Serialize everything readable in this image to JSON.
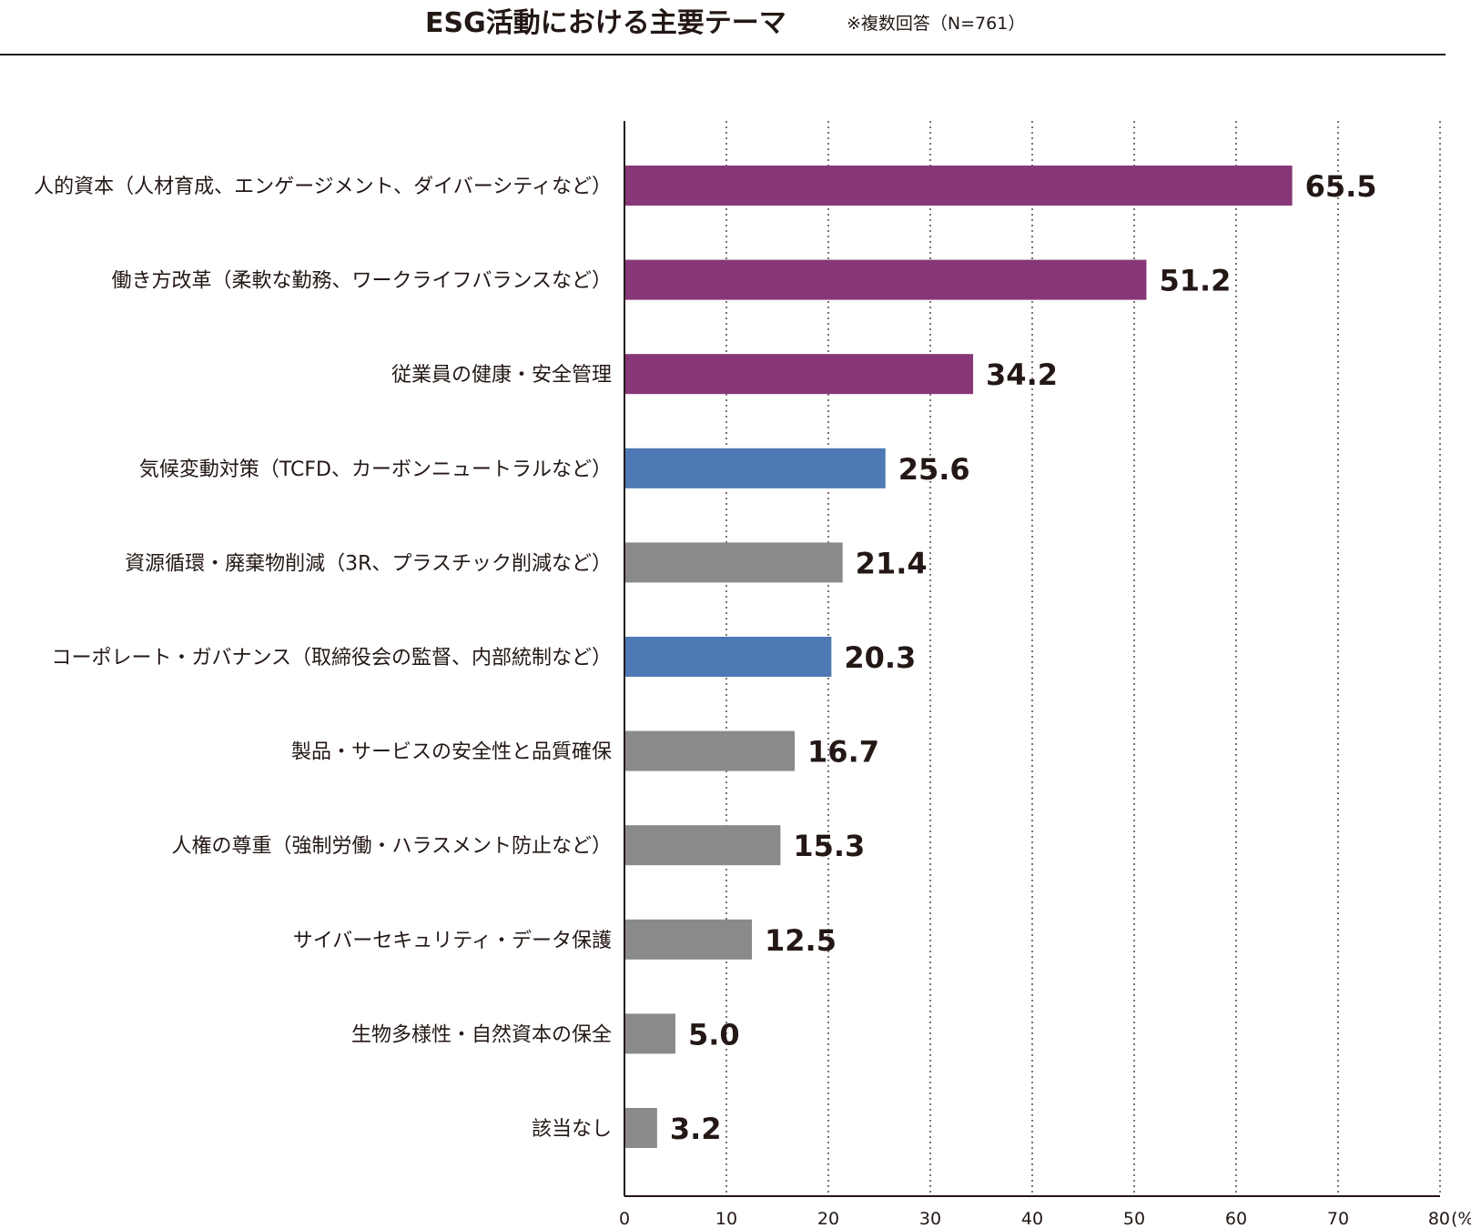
{
  "header": {
    "title": "ESG活動における主要テーマ",
    "note": "※複数回答（N=761）"
  },
  "colors": {
    "social": "#873777",
    "environment_governance": "#4E79B4",
    "other": "#8A8A8A",
    "axis": "#231815"
  },
  "chart_data": {
    "type": "bar",
    "orientation": "horizontal",
    "title": "ESG活動における主要テーマ",
    "subtitle": "※複数回答（N=761）",
    "xlabel": "",
    "unit_label": "(%)",
    "xlim": [
      0,
      80
    ],
    "ticks": [
      0,
      10,
      20,
      30,
      40,
      50,
      60,
      70,
      80
    ],
    "grid": true,
    "categories": [
      "人的資本（人材育成、エンゲージメント、ダイバーシティなど）",
      "働き方改革（柔軟な勤務、ワークライフバランスなど）",
      "従業員の健康・安全管理",
      "気候変動対策（TCFD、カーボンニュートラルなど）",
      "資源循環・廃棄物削減（3R、プラスチック削減など）",
      "コーポレート・ガバナンス（取締役会の監督、内部統制など）",
      "製品・サービスの安全性と品質確保",
      "人権の尊重（強制労働・ハラスメント防止など）",
      "サイバーセキュリティ・データ保護",
      "生物多様性・自然資本の保全",
      "該当なし"
    ],
    "values": [
      65.5,
      51.2,
      34.2,
      25.6,
      21.4,
      20.3,
      16.7,
      15.3,
      12.5,
      5.0,
      3.2
    ],
    "value_labels": [
      "65.5",
      "51.2",
      "34.2",
      "25.6",
      "21.4",
      "20.3",
      "16.7",
      "15.3",
      "12.5",
      "5.0",
      "3.2"
    ],
    "bar_colors": [
      "#873777",
      "#873777",
      "#873777",
      "#4E79B4",
      "#8A8A8A",
      "#4E79B4",
      "#8A8A8A",
      "#8A8A8A",
      "#8A8A8A",
      "#8A8A8A",
      "#8A8A8A"
    ]
  }
}
